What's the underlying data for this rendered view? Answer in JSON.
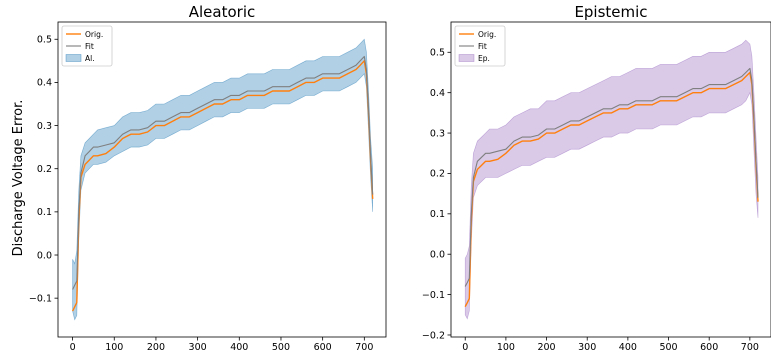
{
  "ylabel": "Discharge Voltage Error.",
  "colors": {
    "orig": "#ff7f0e",
    "fit": "#7f7f7f",
    "aleatoric_band": "#1f77b4",
    "epistemic_band": "#9467bd"
  },
  "chart_data": [
    {
      "type": "line",
      "title": "Aleatoric",
      "xlabel": "",
      "ylabel": "Discharge Voltage Error.",
      "xlim": [
        -35,
        752
      ],
      "ylim": [
        -0.19,
        0.54
      ],
      "xticks": [
        0,
        100,
        200,
        300,
        400,
        500,
        600,
        700
      ],
      "yticks": [
        -0.1,
        0.0,
        0.1,
        0.2,
        0.3,
        0.4,
        0.5
      ],
      "legend_position": "top-left",
      "legend": [
        "Orig.",
        "Fit",
        "Al."
      ],
      "band_color": "#1f77b4",
      "x": [
        0,
        5,
        10,
        15,
        20,
        30,
        40,
        50,
        60,
        80,
        100,
        120,
        140,
        160,
        180,
        200,
        220,
        240,
        260,
        280,
        300,
        320,
        340,
        360,
        380,
        400,
        420,
        440,
        460,
        480,
        500,
        520,
        540,
        560,
        580,
        600,
        620,
        640,
        660,
        680,
        690,
        700,
        705,
        710,
        715,
        720
      ],
      "series": [
        {
          "name": "Orig.",
          "values": [
            -0.13,
            -0.12,
            -0.11,
            0.08,
            0.18,
            0.21,
            0.22,
            0.23,
            0.23,
            0.235,
            0.25,
            0.27,
            0.28,
            0.28,
            0.285,
            0.3,
            0.3,
            0.31,
            0.32,
            0.32,
            0.33,
            0.34,
            0.35,
            0.35,
            0.36,
            0.36,
            0.37,
            0.37,
            0.37,
            0.38,
            0.38,
            0.38,
            0.39,
            0.4,
            0.4,
            0.41,
            0.41,
            0.41,
            0.42,
            0.43,
            0.44,
            0.45,
            0.42,
            0.33,
            0.22,
            0.13
          ]
        },
        {
          "name": "Fit",
          "values": [
            -0.08,
            -0.07,
            -0.06,
            0.1,
            0.19,
            0.23,
            0.24,
            0.25,
            0.25,
            0.255,
            0.26,
            0.28,
            0.29,
            0.29,
            0.295,
            0.31,
            0.31,
            0.32,
            0.33,
            0.33,
            0.34,
            0.35,
            0.36,
            0.36,
            0.37,
            0.37,
            0.38,
            0.38,
            0.38,
            0.39,
            0.39,
            0.39,
            0.4,
            0.41,
            0.41,
            0.42,
            0.42,
            0.42,
            0.43,
            0.44,
            0.45,
            0.46,
            0.43,
            0.34,
            0.23,
            0.14
          ]
        },
        {
          "name": "Al.",
          "lower": [
            -0.13,
            -0.15,
            -0.14,
            0.04,
            0.15,
            0.19,
            0.2,
            0.21,
            0.21,
            0.215,
            0.23,
            0.24,
            0.25,
            0.25,
            0.255,
            0.27,
            0.27,
            0.28,
            0.29,
            0.29,
            0.3,
            0.31,
            0.32,
            0.32,
            0.33,
            0.33,
            0.34,
            0.34,
            0.34,
            0.35,
            0.35,
            0.35,
            0.36,
            0.37,
            0.37,
            0.38,
            0.38,
            0.38,
            0.39,
            0.4,
            0.41,
            0.42,
            0.39,
            0.29,
            0.18,
            0.1
          ],
          "upper": [
            -0.01,
            -0.02,
            0.01,
            0.15,
            0.23,
            0.26,
            0.27,
            0.28,
            0.29,
            0.295,
            0.3,
            0.32,
            0.33,
            0.33,
            0.335,
            0.35,
            0.35,
            0.36,
            0.37,
            0.37,
            0.38,
            0.39,
            0.4,
            0.4,
            0.41,
            0.41,
            0.42,
            0.42,
            0.42,
            0.43,
            0.43,
            0.43,
            0.44,
            0.45,
            0.45,
            0.46,
            0.46,
            0.46,
            0.47,
            0.48,
            0.49,
            0.5,
            0.47,
            0.38,
            0.27,
            0.2
          ]
        }
      ]
    },
    {
      "type": "line",
      "title": "Epistemic",
      "xlabel": "",
      "ylabel": "",
      "xlim": [
        -35,
        752
      ],
      "ylim": [
        -0.205,
        0.575
      ],
      "xticks": [
        0,
        100,
        200,
        300,
        400,
        500,
        600,
        700
      ],
      "yticks": [
        -0.2,
        -0.1,
        0.0,
        0.1,
        0.2,
        0.3,
        0.4,
        0.5
      ],
      "legend_position": "top-left",
      "legend": [
        "Orig.",
        "Fit",
        "Ep."
      ],
      "band_color": "#9467bd",
      "x": [
        0,
        5,
        10,
        15,
        20,
        30,
        40,
        50,
        60,
        80,
        100,
        120,
        140,
        160,
        180,
        200,
        220,
        240,
        260,
        280,
        300,
        320,
        340,
        360,
        380,
        400,
        420,
        440,
        460,
        480,
        500,
        520,
        540,
        560,
        580,
        600,
        620,
        640,
        660,
        680,
        690,
        700,
        705,
        710,
        715,
        720
      ],
      "series": [
        {
          "name": "Orig.",
          "values": [
            -0.13,
            -0.12,
            -0.11,
            0.08,
            0.18,
            0.21,
            0.22,
            0.23,
            0.23,
            0.235,
            0.25,
            0.27,
            0.28,
            0.28,
            0.285,
            0.3,
            0.3,
            0.31,
            0.32,
            0.32,
            0.33,
            0.34,
            0.35,
            0.35,
            0.36,
            0.36,
            0.37,
            0.37,
            0.37,
            0.38,
            0.38,
            0.38,
            0.39,
            0.4,
            0.4,
            0.41,
            0.41,
            0.41,
            0.42,
            0.43,
            0.44,
            0.45,
            0.42,
            0.33,
            0.22,
            0.13
          ]
        },
        {
          "name": "Fit",
          "values": [
            -0.08,
            -0.07,
            -0.06,
            0.1,
            0.19,
            0.23,
            0.24,
            0.25,
            0.25,
            0.255,
            0.26,
            0.28,
            0.29,
            0.29,
            0.295,
            0.31,
            0.31,
            0.32,
            0.33,
            0.33,
            0.34,
            0.35,
            0.36,
            0.36,
            0.37,
            0.37,
            0.38,
            0.38,
            0.38,
            0.39,
            0.39,
            0.39,
            0.4,
            0.41,
            0.41,
            0.42,
            0.42,
            0.42,
            0.43,
            0.44,
            0.45,
            0.46,
            0.43,
            0.34,
            0.23,
            0.14
          ]
        },
        {
          "name": "Ep.",
          "lower": [
            -0.15,
            -0.16,
            -0.14,
            0.03,
            0.14,
            0.17,
            0.18,
            0.19,
            0.19,
            0.19,
            0.2,
            0.21,
            0.22,
            0.22,
            0.23,
            0.24,
            0.24,
            0.25,
            0.26,
            0.26,
            0.27,
            0.28,
            0.29,
            0.29,
            0.3,
            0.3,
            0.31,
            0.31,
            0.31,
            0.32,
            0.32,
            0.32,
            0.33,
            0.34,
            0.34,
            0.35,
            0.35,
            0.35,
            0.36,
            0.37,
            0.38,
            0.4,
            0.37,
            0.26,
            0.15,
            0.09
          ],
          "upper": [
            -0.01,
            0.0,
            0.02,
            0.17,
            0.25,
            0.28,
            0.29,
            0.3,
            0.31,
            0.31,
            0.32,
            0.34,
            0.35,
            0.36,
            0.36,
            0.38,
            0.38,
            0.39,
            0.4,
            0.4,
            0.41,
            0.42,
            0.43,
            0.44,
            0.44,
            0.45,
            0.46,
            0.46,
            0.46,
            0.47,
            0.47,
            0.47,
            0.48,
            0.49,
            0.49,
            0.5,
            0.5,
            0.5,
            0.51,
            0.52,
            0.53,
            0.52,
            0.49,
            0.4,
            0.29,
            0.19
          ]
        }
      ]
    }
  ]
}
